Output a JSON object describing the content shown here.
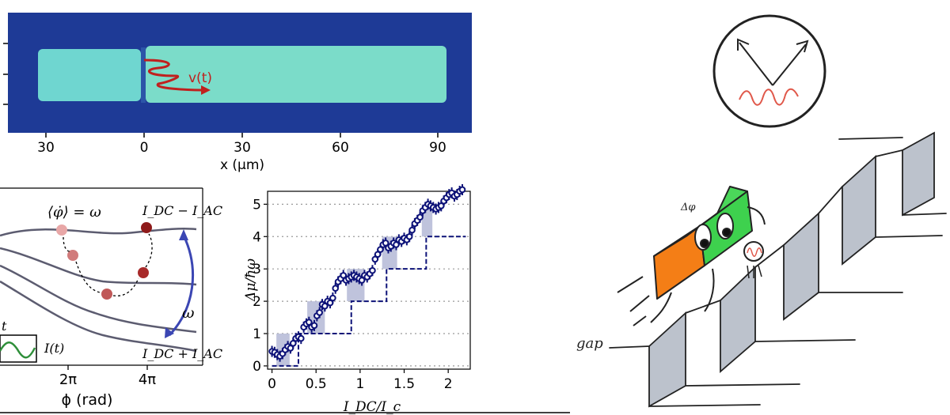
{
  "panel_top": {
    "x_tick_labels": [
      "30",
      "0",
      "30",
      "60",
      "90"
    ],
    "x_axis_label": "x (µm)",
    "velocity_label": "v(t)",
    "colors": {
      "background": "#1e3a96",
      "condensate": "#6fd6d0",
      "arrow": "#c0201e"
    }
  },
  "panel_potential": {
    "avg_phase_label": "⟨φ̇⟩ = ω",
    "label_top": "I_DC − I_AC",
    "label_bottom": "I_DC + I_AC",
    "omega_label": "ω",
    "drive_time_label": "t",
    "drive_label": "I(t)",
    "x_tick_labels": [
      "2π",
      "4π"
    ],
    "x_axis_label": "ϕ (rad)",
    "colors": {
      "curve": "#5c5c70",
      "arrow": "#3b46b3",
      "drive": "#2f8f3a",
      "particle": "#b0242a"
    }
  },
  "chart_data": {
    "type": "scatter",
    "xlabel": "I_DC/I_c",
    "ylabel": "Δμ/ħω",
    "xlim": [
      -0.05,
      2.25
    ],
    "ylim": [
      -0.1,
      5.4
    ],
    "x_ticks": [
      "0",
      "0.5",
      "1",
      "1.5",
      "2"
    ],
    "y_ticks": [
      "0",
      "1",
      "2",
      "3",
      "4",
      "5"
    ],
    "grid": "horizontal dotted at integers",
    "series": [
      {
        "points_x": [
          0.0,
          0.03,
          0.06,
          0.09,
          0.12,
          0.15,
          0.18,
          0.21,
          0.24,
          0.27,
          0.3,
          0.33,
          0.36,
          0.39,
          0.42,
          0.45,
          0.48,
          0.51,
          0.54,
          0.57,
          0.6,
          0.63,
          0.66,
          0.69,
          0.72,
          0.75,
          0.78,
          0.81,
          0.84,
          0.87,
          0.9,
          0.93,
          0.96,
          0.99,
          1.02,
          1.05,
          1.08,
          1.11,
          1.14,
          1.17,
          1.2,
          1.23,
          1.26,
          1.29,
          1.32,
          1.35,
          1.38,
          1.41,
          1.44,
          1.47,
          1.5,
          1.53,
          1.56,
          1.59,
          1.62,
          1.65,
          1.68,
          1.71,
          1.74,
          1.77,
          1.8,
          1.83,
          1.86,
          1.89,
          1.92,
          1.95,
          1.98,
          2.01,
          2.04,
          2.07,
          2.1,
          2.13,
          2.16
        ],
        "points_y": [
          0.45,
          0.42,
          0.35,
          0.3,
          0.38,
          0.5,
          0.6,
          0.55,
          0.7,
          0.85,
          0.9,
          0.85,
          1.2,
          1.3,
          1.35,
          1.2,
          1.25,
          1.55,
          1.65,
          1.9,
          1.85,
          2.0,
          1.95,
          2.1,
          2.4,
          2.6,
          2.7,
          2.8,
          2.65,
          2.7,
          2.75,
          2.8,
          2.75,
          2.7,
          2.65,
          2.8,
          2.75,
          2.85,
          2.95,
          3.3,
          3.45,
          3.6,
          3.75,
          3.8,
          3.65,
          3.7,
          3.8,
          3.75,
          3.9,
          3.85,
          3.95,
          3.9,
          4.0,
          4.2,
          4.4,
          4.5,
          4.6,
          4.8,
          4.9,
          5.0,
          4.95,
          4.9,
          4.85,
          4.9,
          4.95,
          5.1,
          5.2,
          5.3,
          5.35,
          5.25,
          5.3,
          5.4,
          5.45
        ],
        "marker": "open circle with error bar",
        "color": "#0d1278"
      }
    ],
    "staircase_steps": [
      {
        "x_start": 0.0,
        "x_end": 0.3,
        "level": 0
      },
      {
        "x_start": 0.3,
        "x_end": 0.9,
        "level": 1
      },
      {
        "x_start": 0.9,
        "x_end": 1.3,
        "level": 2
      },
      {
        "x_start": 1.3,
        "x_end": 1.75,
        "level": 3
      },
      {
        "x_start": 1.75,
        "x_end": 2.2,
        "level": 4
      }
    ],
    "shaded_bands": [
      {
        "x_start": 0.05,
        "x_end": 0.2,
        "y_start": 0,
        "y_end": 1
      },
      {
        "x_start": 0.4,
        "x_end": 0.6,
        "y_start": 1,
        "y_end": 2
      },
      {
        "x_start": 0.85,
        "x_end": 1.05,
        "y_start": 2,
        "y_end": 3
      },
      {
        "x_start": 1.25,
        "x_end": 1.42,
        "y_start": 3,
        "y_end": 4
      },
      {
        "x_start": 1.7,
        "x_end": 1.82,
        "y_start": 4,
        "y_end": 5
      }
    ]
  },
  "cartoon": {
    "gap_label": "gap",
    "delta_phi_label": "Δφ",
    "colors": {
      "left_block": "#f47e16",
      "right_block": "#3ed14e",
      "stair": "#bcc2cc",
      "wave": "#e0584a"
    }
  }
}
